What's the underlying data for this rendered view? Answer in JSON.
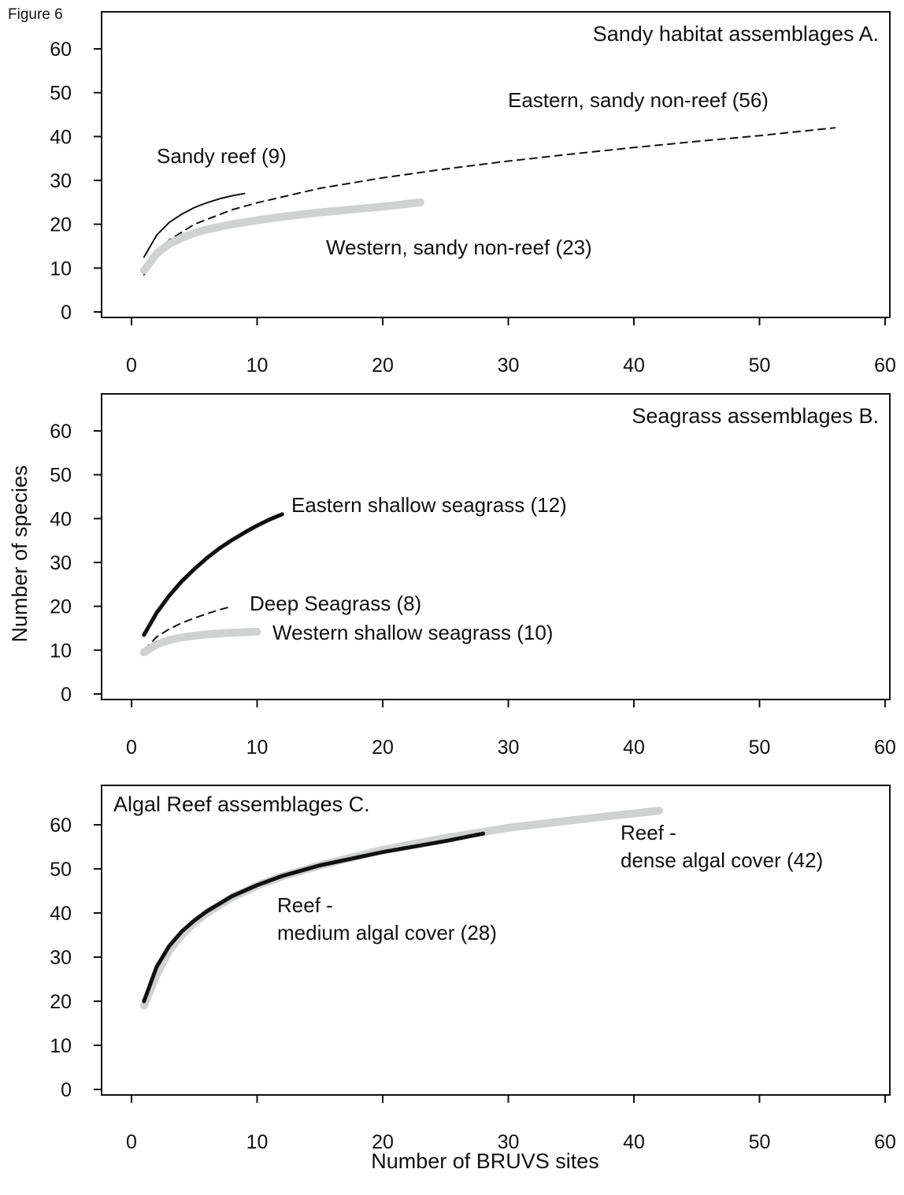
{
  "figure_label": "Figure 6",
  "y_axis_title": "Number of species",
  "x_axis_title": "Number of BRUVS sites",
  "colors": {
    "black": "#111111",
    "grey": "#cfd2d0"
  },
  "chart_data": [
    {
      "type": "line",
      "title": "Sandy habitat assemblages  A.",
      "xlim": [
        0,
        60
      ],
      "ylim": [
        0,
        60
      ],
      "xticks": [
        0,
        10,
        20,
        30,
        40,
        50,
        60
      ],
      "yticks": [
        0,
        10,
        20,
        30,
        40,
        50,
        60
      ],
      "grid": false,
      "series": [
        {
          "name": "Sandy reef (9)",
          "style": "thin-solid-black",
          "x": [
            1,
            2,
            3,
            4,
            5,
            6,
            7,
            8,
            9
          ],
          "y": [
            12.5,
            17.5,
            20.4,
            22.3,
            23.8,
            24.9,
            25.8,
            26.5,
            27
          ]
        },
        {
          "name": "Eastern, sandy non-reef (56)",
          "style": "dashed-black",
          "x": [
            1,
            2,
            3,
            5,
            8,
            10,
            15,
            20,
            25,
            30,
            35,
            40,
            45,
            50,
            56
          ],
          "y": [
            8.5,
            13.5,
            16.4,
            20,
            23.3,
            24.9,
            28.2,
            30.6,
            32.6,
            34.4,
            36,
            37.5,
            38.9,
            40.2,
            42
          ]
        },
        {
          "name": "Western, sandy non-reef (23)",
          "style": "thick-grey",
          "x": [
            1,
            2,
            3,
            4,
            5,
            6,
            8,
            10,
            12,
            15,
            18,
            20,
            23
          ],
          "y": [
            9.5,
            13.3,
            15.5,
            16.9,
            18,
            18.8,
            20,
            20.9,
            21.7,
            22.7,
            23.5,
            24,
            25
          ]
        }
      ]
    },
    {
      "type": "line",
      "title": "Seagrass assemblages  B.",
      "xlim": [
        0,
        60
      ],
      "ylim": [
        0,
        60
      ],
      "xticks": [
        0,
        10,
        20,
        30,
        40,
        50,
        60
      ],
      "yticks": [
        0,
        10,
        20,
        30,
        40,
        50,
        60
      ],
      "grid": false,
      "series": [
        {
          "name": "Eastern shallow seagrass (12)",
          "style": "thick-black",
          "x": [
            1,
            2,
            3,
            4,
            5,
            6,
            7,
            8,
            9,
            10,
            11,
            12
          ],
          "y": [
            13.5,
            18.5,
            22.4,
            25.7,
            28.5,
            31,
            33.2,
            35.1,
            36.8,
            38.4,
            39.8,
            41
          ]
        },
        {
          "name": "Deep Seagrass (8)",
          "style": "dashed-black",
          "x": [
            1,
            2,
            3,
            4,
            5,
            6,
            7,
            8
          ],
          "y": [
            10,
            13,
            14.8,
            16.2,
            17.3,
            18.3,
            19.2,
            20
          ]
        },
        {
          "name": "Western shallow seagrass (10)",
          "style": "thick-grey",
          "x": [
            1,
            2,
            3,
            4,
            5,
            6,
            7,
            8,
            9,
            10
          ],
          "y": [
            9.5,
            11.3,
            12.3,
            12.9,
            13.3,
            13.6,
            13.8,
            14,
            14.1,
            14.2
          ]
        }
      ]
    },
    {
      "type": "line",
      "title": "Algal Reef assemblages  C.",
      "xlim": [
        0,
        60
      ],
      "ylim": [
        0,
        60
      ],
      "xticks": [
        0,
        10,
        20,
        30,
        40,
        50,
        60
      ],
      "yticks": [
        0,
        10,
        20,
        30,
        40,
        50,
        60
      ],
      "grid": false,
      "series": [
        {
          "name": "Reef - dense algal cover (42)",
          "style": "thick-grey",
          "x": [
            1,
            2,
            3,
            4,
            5,
            6,
            8,
            10,
            12,
            15,
            20,
            25,
            30,
            35,
            42
          ],
          "y": [
            19,
            26,
            31.5,
            35,
            37.8,
            40,
            43.5,
            46.2,
            48.3,
            50.8,
            54.3,
            57,
            59.3,
            61,
            63.2
          ]
        },
        {
          "name": "Reef - medium algal cover (28)",
          "style": "thick-black",
          "x": [
            1,
            2,
            3,
            4,
            5,
            6,
            8,
            10,
            12,
            15,
            20,
            25,
            28
          ],
          "y": [
            20,
            27.8,
            32.5,
            35.8,
            38.3,
            40.4,
            43.8,
            46.3,
            48.4,
            50.8,
            53.8,
            56.3,
            58
          ]
        }
      ]
    }
  ],
  "annotations": [
    [
      "Sandy reef (9)",
      "Eastern, sandy non-reef (56)",
      "Western, sandy non-reef (23)"
    ],
    [
      "Eastern shallow seagrass (12)",
      "Deep Seagrass (8)",
      "Western shallow seagrass (10)"
    ],
    [
      "Reef -",
      "dense algal cover (42)",
      "Reef -",
      "medium algal cover (28)"
    ]
  ]
}
